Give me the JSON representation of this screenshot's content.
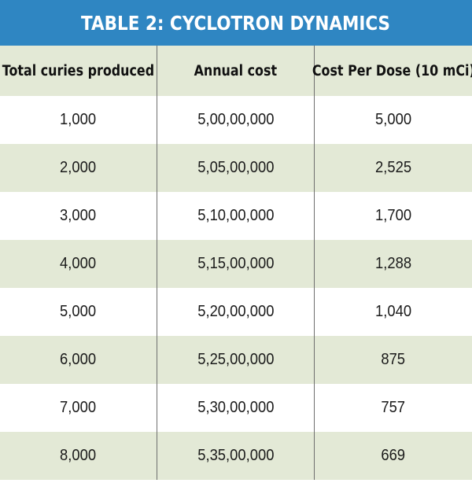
{
  "title": "TABLE 2: CYCLOTRON DYNAMICS",
  "colors": {
    "title_bg": "#2f86c2",
    "band": "#e3e9d6",
    "white": "#ffffff",
    "rule": "#6f6f6f"
  },
  "columns": [
    "Total curies produced",
    "Annual cost",
    "Cost Per Dose (10 mCi)"
  ],
  "rows": [
    [
      "1,000",
      "5,00,00,000",
      "5,000"
    ],
    [
      "2,000",
      "5,05,00,000",
      "2,525"
    ],
    [
      "3,000",
      "5,10,00,000",
      "1,700"
    ],
    [
      "4,000",
      "5,15,00,000",
      "1,288"
    ],
    [
      "5,000",
      "5,20,00,000",
      "1,040"
    ],
    [
      "6,000",
      "5,25,00,000",
      "875"
    ],
    [
      "7,000",
      "5,30,00,000",
      "757"
    ],
    [
      "8,000",
      "5,35,00,000",
      "669"
    ]
  ]
}
